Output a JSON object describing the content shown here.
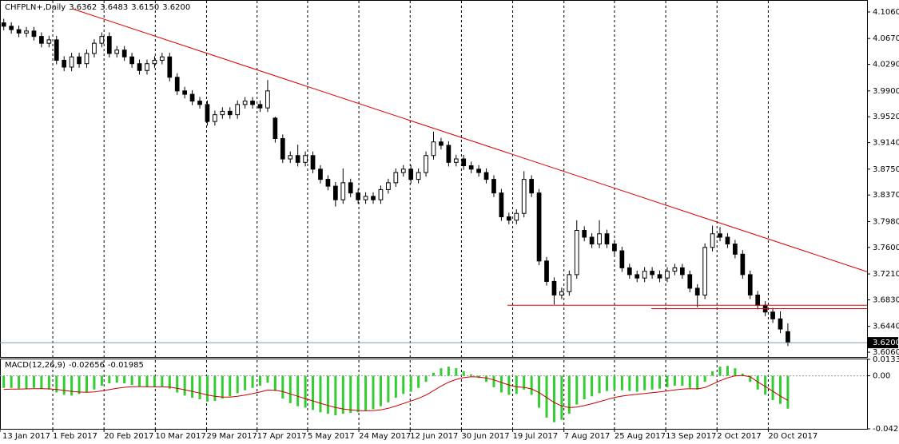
{
  "chart_data": {
    "type": "candlestick",
    "symbol": "CHFPLN+,Daily",
    "ohlc_labels": [
      "3.6362",
      "3.6483",
      "3.6150",
      "3.6200"
    ],
    "candles": [
      [
        4.09,
        4.096,
        4.079,
        4.085
      ],
      [
        4.085,
        4.091,
        4.074,
        4.08
      ],
      [
        4.08,
        4.086,
        4.069,
        4.075
      ],
      [
        4.075,
        4.084,
        4.069,
        4.078
      ],
      [
        4.078,
        4.084,
        4.064,
        4.07
      ],
      [
        4.07,
        4.076,
        4.054,
        4.06
      ],
      [
        4.06,
        4.071,
        4.054,
        4.065
      ],
      [
        4.065,
        4.071,
        4.029,
        4.035
      ],
      [
        4.035,
        4.041,
        4.019,
        4.025
      ],
      [
        4.025,
        4.046,
        4.019,
        4.04
      ],
      [
        4.04,
        4.046,
        4.024,
        4.03
      ],
      [
        4.03,
        4.051,
        4.024,
        4.045
      ],
      [
        4.045,
        4.066,
        4.039,
        4.06
      ],
      [
        4.06,
        4.076,
        4.054,
        4.07
      ],
      [
        4.07,
        4.076,
        4.039,
        4.045
      ],
      [
        4.045,
        4.056,
        4.039,
        4.05
      ],
      [
        4.05,
        4.056,
        4.034,
        4.04
      ],
      [
        4.04,
        4.046,
        4.024,
        4.03
      ],
      [
        4.03,
        4.036,
        4.014,
        4.02
      ],
      [
        4.02,
        4.036,
        4.014,
        4.03
      ],
      [
        4.03,
        4.041,
        4.024,
        4.035
      ],
      [
        4.035,
        4.046,
        4.029,
        4.04
      ],
      [
        4.04,
        4.046,
        4.004,
        4.01
      ],
      [
        4.01,
        4.016,
        3.984,
        3.99
      ],
      [
        3.99,
        3.996,
        3.979,
        3.985
      ],
      [
        3.985,
        3.991,
        3.969,
        3.975
      ],
      [
        3.975,
        3.981,
        3.964,
        3.97
      ],
      [
        3.97,
        3.976,
        3.939,
        3.945
      ],
      [
        3.945,
        3.961,
        3.939,
        3.955
      ],
      [
        3.955,
        3.966,
        3.949,
        3.96
      ],
      [
        3.96,
        3.966,
        3.949,
        3.955
      ],
      [
        3.955,
        3.976,
        3.949,
        3.97
      ],
      [
        3.97,
        3.981,
        3.964,
        3.975
      ],
      [
        3.975,
        3.981,
        3.964,
        3.97
      ],
      [
        3.97,
        3.976,
        3.959,
        3.965
      ],
      [
        3.965,
        4.006,
        3.959,
        3.99
      ],
      [
        3.95,
        3.952,
        3.914,
        3.92
      ],
      [
        3.92,
        3.926,
        3.884,
        3.89
      ],
      [
        3.89,
        3.901,
        3.884,
        3.895
      ],
      [
        3.895,
        3.911,
        3.879,
        3.885
      ],
      [
        3.885,
        3.901,
        3.879,
        3.895
      ],
      [
        3.895,
        3.901,
        3.869,
        3.875
      ],
      [
        3.875,
        3.881,
        3.854,
        3.86
      ],
      [
        3.86,
        3.866,
        3.844,
        3.85
      ],
      [
        3.85,
        3.856,
        3.82,
        3.83
      ],
      [
        3.83,
        3.876,
        3.824,
        3.855
      ],
      [
        3.855,
        3.861,
        3.834,
        3.84
      ],
      [
        3.84,
        3.846,
        3.824,
        3.83
      ],
      [
        3.83,
        3.841,
        3.824,
        3.835
      ],
      [
        3.835,
        3.841,
        3.824,
        3.83
      ],
      [
        3.83,
        3.851,
        3.824,
        3.845
      ],
      [
        3.845,
        3.861,
        3.839,
        3.855
      ],
      [
        3.855,
        3.876,
        3.849,
        3.87
      ],
      [
        3.87,
        3.881,
        3.864,
        3.875
      ],
      [
        3.875,
        3.881,
        3.854,
        3.86
      ],
      [
        3.86,
        3.876,
        3.854,
        3.87
      ],
      [
        3.87,
        3.901,
        3.864,
        3.895
      ],
      [
        3.895,
        3.93,
        3.889,
        3.915
      ],
      [
        3.915,
        3.921,
        3.904,
        3.91
      ],
      [
        3.91,
        3.916,
        3.879,
        3.885
      ],
      [
        3.885,
        3.896,
        3.879,
        3.89
      ],
      [
        3.89,
        3.896,
        3.874,
        3.88
      ],
      [
        3.88,
        3.886,
        3.869,
        3.875
      ],
      [
        3.875,
        3.881,
        3.864,
        3.87
      ],
      [
        3.87,
        3.876,
        3.854,
        3.86
      ],
      [
        3.86,
        3.866,
        3.834,
        3.84
      ],
      [
        3.84,
        3.846,
        3.799,
        3.805
      ],
      [
        3.805,
        3.811,
        3.794,
        3.8
      ],
      [
        3.8,
        3.816,
        3.794,
        3.81
      ],
      [
        3.81,
        3.872,
        3.804,
        3.86
      ],
      [
        3.86,
        3.866,
        3.834,
        3.84
      ],
      [
        3.84,
        3.846,
        3.734,
        3.74
      ],
      [
        3.74,
        3.746,
        3.704,
        3.71
      ],
      [
        3.71,
        3.716,
        3.676,
        3.69
      ],
      [
        3.69,
        3.701,
        3.684,
        3.695
      ],
      [
        3.695,
        3.726,
        3.689,
        3.72
      ],
      [
        3.72,
        3.8,
        3.714,
        3.785
      ],
      [
        3.785,
        3.791,
        3.769,
        3.775
      ],
      [
        3.775,
        3.781,
        3.759,
        3.765
      ],
      [
        3.765,
        3.8,
        3.759,
        3.78
      ],
      [
        3.78,
        3.786,
        3.759,
        3.765
      ],
      [
        3.765,
        3.771,
        3.749,
        3.755
      ],
      [
        3.755,
        3.761,
        3.724,
        3.73
      ],
      [
        3.73,
        3.736,
        3.714,
        3.72
      ],
      [
        3.72,
        3.726,
        3.709,
        3.715
      ],
      [
        3.715,
        3.731,
        3.709,
        3.725
      ],
      [
        3.725,
        3.731,
        3.714,
        3.72
      ],
      [
        3.72,
        3.726,
        3.709,
        3.715
      ],
      [
        3.715,
        3.731,
        3.709,
        3.725
      ],
      [
        3.725,
        3.736,
        3.719,
        3.73
      ],
      [
        3.73,
        3.736,
        3.714,
        3.72
      ],
      [
        3.72,
        3.726,
        3.694,
        3.7
      ],
      [
        3.7,
        3.706,
        3.672,
        3.69
      ],
      [
        3.69,
        3.766,
        3.684,
        3.76
      ],
      [
        3.76,
        3.792,
        3.754,
        3.78
      ],
      [
        3.78,
        3.79,
        3.769,
        3.775
      ],
      [
        3.775,
        3.781,
        3.759,
        3.765
      ],
      [
        3.765,
        3.771,
        3.744,
        3.75
      ],
      [
        3.75,
        3.756,
        3.714,
        3.72
      ],
      [
        3.72,
        3.726,
        3.684,
        3.69
      ],
      [
        3.69,
        3.696,
        3.669,
        3.675
      ],
      [
        3.675,
        3.681,
        3.659,
        3.665
      ],
      [
        3.665,
        3.671,
        3.649,
        3.655
      ],
      [
        3.655,
        3.666,
        3.634,
        3.64
      ],
      [
        3.6362,
        3.6483,
        3.615,
        3.62
      ]
    ],
    "xlim": [
      -0.5,
      114.5
    ],
    "xticks": [
      {
        "value": -0.5,
        "label": "13 Jan 2017"
      },
      {
        "value": 6.5,
        "label": "1 Feb 2017"
      },
      {
        "value": 13.3,
        "label": "20 Feb 2017"
      },
      {
        "value": 20.1,
        "label": "10 Mar 2017"
      },
      {
        "value": 26.9,
        "label": "29 Mar 2017"
      },
      {
        "value": 33.6,
        "label": "17 Apr 2017"
      },
      {
        "value": 40.3,
        "label": "5 May 2017"
      },
      {
        "value": 47.1,
        "label": "24 May 2017"
      },
      {
        "value": 53.9,
        "label": "12 Jun 2017"
      },
      {
        "value": 60.7,
        "label": "30 Jun 2017"
      },
      {
        "value": 67.5,
        "label": "19 Jul 2017"
      },
      {
        "value": 74.3,
        "label": "7 Aug 2017"
      },
      {
        "value": 81,
        "label": "25 Aug 2017"
      },
      {
        "value": 87.8,
        "label": "13 Sep 2017"
      },
      {
        "value": 94.6,
        "label": "2 Oct 2017"
      },
      {
        "value": 101.4,
        "label": "20 Oct 2017"
      }
    ],
    "ylim": [
      3.599,
      4.1224
    ],
    "yticks": [
      {
        "value": 4.106,
        "label": "4.1060"
      },
      {
        "value": 4.067,
        "label": "4.0670"
      },
      {
        "value": 4.029,
        "label": "4.0290"
      },
      {
        "value": 3.99,
        "label": "3.9900"
      },
      {
        "value": 3.952,
        "label": "3.9520"
      },
      {
        "value": 3.914,
        "label": "3.9140"
      },
      {
        "value": 3.875,
        "label": "3.8750"
      },
      {
        "value": 3.837,
        "label": "3.8370"
      },
      {
        "value": 3.798,
        "label": "3.7980"
      },
      {
        "value": 3.76,
        "label": "3.7600"
      },
      {
        "value": 3.721,
        "label": "3.7210"
      },
      {
        "value": 3.683,
        "label": "3.6830"
      },
      {
        "value": 3.644,
        "label": "3.6440"
      },
      {
        "value": 3.606,
        "label": "3.6060"
      }
    ],
    "grid": true,
    "trendlines": [
      {
        "x": [
          9.1,
          114.5
        ],
        "y": [
          4.1107,
          3.7243
        ],
        "color": "#dd0000"
      },
      {
        "x": [
          66.8,
          114.5
        ],
        "y": [
          3.675,
          3.675
        ],
        "color": "#dd0000"
      },
      {
        "x": [
          85.9,
          114.5
        ],
        "y": [
          3.67,
          3.67
        ],
        "color": "#dd0000"
      }
    ],
    "macd": {
      "label": "MACD(12,26,9)",
      "ylim": [
        -0.04289,
        0.0133
      ],
      "yticks": [
        0.0133,
        {
          "value": 0,
          "label": "0.00"
        },
        -0.04289
      ],
      "histogram_color": "#33cc33",
      "signal_color": "#cc0000",
      "histogram": [
        -0.0098,
        -0.0098,
        -0.0104,
        -0.0104,
        -0.0098,
        -0.0104,
        -0.0111,
        -0.0135,
        -0.0154,
        -0.016,
        -0.0147,
        -0.0135,
        -0.0111,
        -0.008,
        -0.0061,
        -0.0055,
        -0.0061,
        -0.0074,
        -0.0086,
        -0.0092,
        -0.0092,
        -0.0086,
        -0.0104,
        -0.0135,
        -0.016,
        -0.0178,
        -0.019,
        -0.0209,
        -0.0203,
        -0.0184,
        -0.0166,
        -0.0141,
        -0.0117,
        -0.0098,
        -0.008,
        -0.0055,
        -0.0123,
        -0.0184,
        -0.0221,
        -0.0246,
        -0.0258,
        -0.0276,
        -0.0295,
        -0.0307,
        -0.0319,
        -0.0307,
        -0.0301,
        -0.0295,
        -0.0282,
        -0.027,
        -0.0246,
        -0.0215,
        -0.0178,
        -0.0147,
        -0.0129,
        -0.0098,
        -0.0049,
        0.0025,
        0.0061,
        0.0074,
        0.0061,
        0.0037,
        0.0012,
        -0.0018,
        -0.0049,
        -0.0092,
        -0.0135,
        -0.0154,
        -0.0147,
        -0.0111,
        -0.0154,
        -0.0258,
        -0.0338,
        -0.0375,
        -0.0356,
        -0.0307,
        -0.0233,
        -0.019,
        -0.0166,
        -0.0141,
        -0.0123,
        -0.0111,
        -0.0117,
        -0.0123,
        -0.0129,
        -0.0117,
        -0.0111,
        -0.0104,
        -0.0092,
        -0.008,
        -0.008,
        -0.0098,
        -0.0111,
        -0.0049,
        0.0037,
        0.0074,
        0.008,
        0.0061,
        0.0018,
        -0.0049,
        -0.0111,
        -0.0154,
        -0.0197,
        -0.0227,
        -0.02656
      ],
      "signal": [
        -0.011,
        -0.0108,
        -0.0107,
        -0.0106,
        -0.0105,
        -0.0105,
        -0.0106,
        -0.011,
        -0.0118,
        -0.0126,
        -0.0131,
        -0.0133,
        -0.013,
        -0.0122,
        -0.0112,
        -0.0101,
        -0.0093,
        -0.0088,
        -0.0087,
        -0.0088,
        -0.0089,
        -0.0089,
        -0.0092,
        -0.0101,
        -0.0113,
        -0.0126,
        -0.014,
        -0.0155,
        -0.0166,
        -0.0172,
        -0.0172,
        -0.0166,
        -0.0156,
        -0.0144,
        -0.0131,
        -0.0115,
        -0.0116,
        -0.0128,
        -0.0146,
        -0.0166,
        -0.0184,
        -0.0203,
        -0.0222,
        -0.024,
        -0.0256,
        -0.0268,
        -0.0276,
        -0.0281,
        -0.0283,
        -0.0281,
        -0.0275,
        -0.0263,
        -0.0245,
        -0.0224,
        -0.0204,
        -0.0183,
        -0.0156,
        -0.012,
        -0.0084,
        -0.0052,
        -0.0029,
        -0.0015,
        -0.0008,
        -0.001,
        -0.0018,
        -0.0033,
        -0.0054,
        -0.0074,
        -0.0089,
        -0.0094,
        -0.0106,
        -0.0136,
        -0.0176,
        -0.0216,
        -0.0244,
        -0.0257,
        -0.0253,
        -0.0241,
        -0.0226,
        -0.0209,
        -0.0192,
        -0.0176,
        -0.0164,
        -0.0156,
        -0.015,
        -0.0143,
        -0.0137,
        -0.013,
        -0.0122,
        -0.0114,
        -0.0107,
        -0.0105,
        -0.0106,
        -0.0095,
        -0.0068,
        -0.004,
        -0.0016,
        -0.0001,
        0.0003,
        -0.0007,
        -0.005,
        -0.0085,
        -0.0125,
        -0.0165,
        -0.01985
      ]
    }
  }
}
